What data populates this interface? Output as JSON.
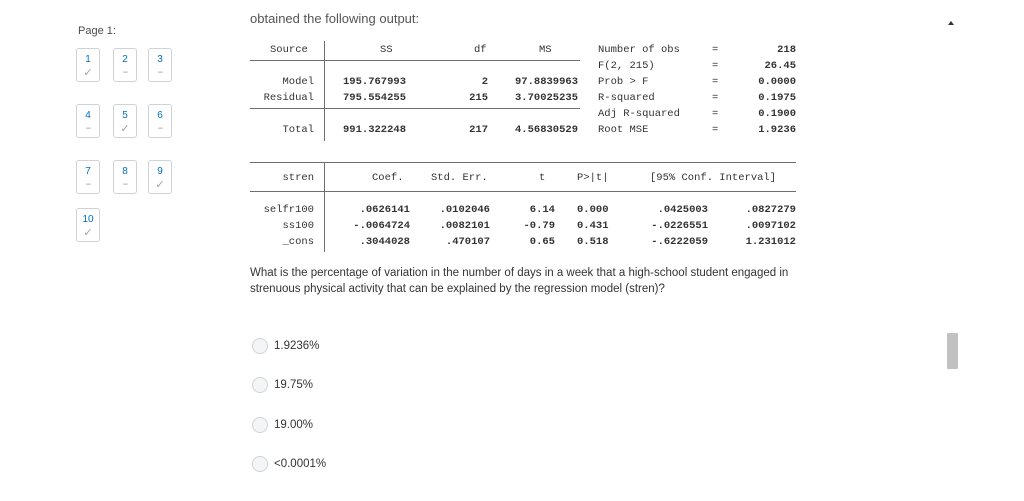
{
  "nav": {
    "page_label": "Page 1:",
    "questions": [
      {
        "num": "1",
        "status": "✓"
      },
      {
        "num": "2",
        "status": "--"
      },
      {
        "num": "3",
        "status": "--"
      },
      {
        "num": "4",
        "status": "--"
      },
      {
        "num": "5",
        "status": "✓"
      },
      {
        "num": "6",
        "status": "--"
      },
      {
        "num": "7",
        "status": "--"
      },
      {
        "num": "8",
        "status": "--"
      },
      {
        "num": "9",
        "status": "✓"
      },
      {
        "num": "10",
        "status": "✓"
      }
    ]
  },
  "intro": "obtained the following output:",
  "anova": {
    "headers": {
      "source": "Source",
      "ss": "SS",
      "df": "df",
      "ms": "MS"
    },
    "rows": [
      {
        "source": "Model",
        "ss": "195.767993",
        "df": "2",
        "ms": "97.8839963"
      },
      {
        "source": "Residual",
        "ss": "795.554255",
        "df": "215",
        "ms": "3.70025235"
      },
      {
        "source": "Total",
        "ss": "991.322248",
        "df": "217",
        "ms": "4.56830529"
      }
    ]
  },
  "fit_stats": [
    {
      "label": "Number of obs",
      "eq": "=",
      "value": "218"
    },
    {
      "label": "F(2, 215)",
      "eq": "=",
      "value": "26.45"
    },
    {
      "label": "Prob > F",
      "eq": "=",
      "value": "0.0000"
    },
    {
      "label": "R-squared",
      "eq": "=",
      "value": "0.1975"
    },
    {
      "label": "Adj R-squared",
      "eq": "=",
      "value": "0.1900"
    },
    {
      "label": "Root MSE",
      "eq": "=",
      "value": "1.9236"
    }
  ],
  "coef_table": {
    "headers": {
      "var": "stren",
      "coef": "Coef.",
      "se": "Std. Err.",
      "t": "t",
      "p": "P>|t|",
      "ci": "[95% Conf. Interval]"
    },
    "rows": [
      {
        "var": "selfr100",
        "coef": ".0626141",
        "se": ".0102046",
        "t": "6.14",
        "p": "0.000",
        "lo": ".0425003",
        "hi": ".0827279"
      },
      {
        "var": "ss100",
        "coef": "-.0064724",
        "se": ".0082101",
        "t": "-0.79",
        "p": "0.431",
        "lo": "-.0226551",
        "hi": ".0097102"
      },
      {
        "var": "_cons",
        "coef": ".3044028",
        "se": ".470107",
        "t": "0.65",
        "p": "0.518",
        "lo": "-.6222059",
        "hi": "1.231012"
      }
    ]
  },
  "question": {
    "text": "What is the percentage of variation in the number of days in a week that a high-school student engaged in strenuous physical activity that can be explained by the regression model (stren)?",
    "options": [
      "1.9236%",
      "19.75%",
      "19.00%",
      "<0.0001%"
    ]
  }
}
